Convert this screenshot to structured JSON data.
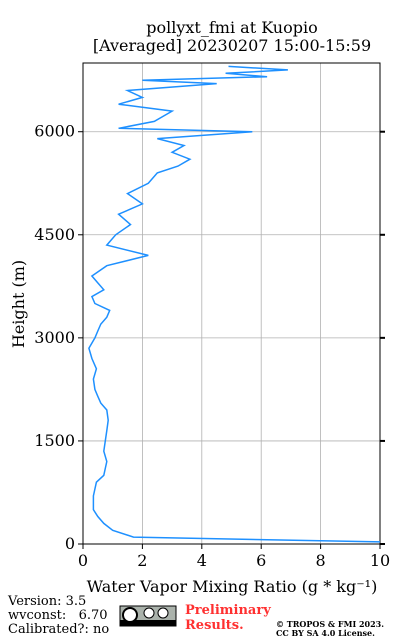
{
  "chart_data": {
    "type": "line",
    "title": "pollyxt_fmi at Kuopio",
    "subtitle": "[Averaged] 20230207 15:00-15:59",
    "xlabel": "Water Vapor Mixing Ratio (g * kg⁻¹)",
    "ylabel": "Height (m)",
    "x": [
      30,
      100,
      200,
      300,
      400,
      500,
      600,
      700,
      800,
      900,
      1000,
      1100,
      1200,
      1350,
      1500,
      1650,
      1800,
      1950,
      2050,
      2150,
      2250,
      2400,
      2550,
      2700,
      2850,
      3000,
      3100,
      3200,
      3300,
      3400,
      3500,
      3600,
      3700,
      3800,
      3900,
      4050,
      4200,
      4350,
      4500,
      4650,
      4800,
      4950,
      5100,
      5250,
      5400,
      5500,
      5600,
      5700,
      5800,
      5900,
      6000,
      6050,
      6150,
      6300,
      6400,
      6500,
      6600,
      6700,
      6750,
      6800,
      6850,
      6900,
      6950
    ],
    "values": [
      10,
      1.7,
      1.0,
      0.7,
      0.5,
      0.35,
      0.35,
      0.35,
      0.4,
      0.45,
      0.7,
      0.75,
      0.8,
      0.7,
      0.75,
      0.8,
      0.85,
      0.8,
      0.6,
      0.5,
      0.4,
      0.35,
      0.45,
      0.3,
      0.2,
      0.4,
      0.5,
      0.6,
      0.8,
      0.9,
      0.4,
      0.3,
      0.7,
      0.5,
      0.3,
      0.8,
      2.2,
      0.8,
      1.1,
      1.6,
      1.2,
      2.0,
      1.5,
      2.2,
      2.5,
      3.2,
      3.6,
      3.0,
      3.4,
      2.5,
      5.7,
      1.2,
      2.4,
      3.0,
      1.2,
      2.0,
      1.5,
      4.5,
      2.0,
      6.2,
      4.8,
      6.9,
      4.9
    ],
    "color": "#1e90ff",
    "xlim": [
      0,
      10
    ],
    "xticks": [
      0,
      2,
      4,
      6,
      8,
      10
    ],
    "ylim": [
      0,
      7000
    ],
    "yticks": [
      0,
      1500,
      3000,
      4500,
      6000
    ],
    "grid": true,
    "annotations": [
      "Version: 3.5",
      "wvconst:   6.70",
      "Calibrated?: no",
      "Preliminary",
      "Results.",
      "© TROPOS & FMI 2023.",
      "CC BY SA 4.0 License."
    ]
  }
}
